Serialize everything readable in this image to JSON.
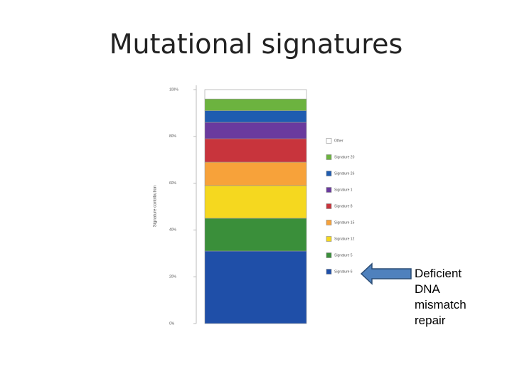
{
  "chart_data": {
    "type": "stacked_bar",
    "title": "Mutational signatures",
    "y_label": "Signature contribution",
    "categories": [
      null
    ],
    "series": [
      {
        "name": "Signature 6",
        "color": "#1f4fa8",
        "values": [
          31
        ]
      },
      {
        "name": "Signature 5",
        "color": "#3a8f3a",
        "values": [
          14
        ]
      },
      {
        "name": "Signature 12",
        "color": "#f5d81f",
        "values": [
          14
        ]
      },
      {
        "name": "Signature 15",
        "color": "#f7a23a",
        "values": [
          10
        ]
      },
      {
        "name": "Signature 8",
        "color": "#c8343c",
        "values": [
          10
        ]
      },
      {
        "name": "Signature 1",
        "color": "#6a3a9e",
        "values": [
          7
        ]
      },
      {
        "name": "Signature 26",
        "color": "#1f5cb0",
        "values": [
          5
        ]
      },
      {
        "name": "Signature 20",
        "color": "#6cb33f",
        "values": [
          5
        ]
      },
      {
        "name": "Other",
        "color": "#ffffff",
        "values": [
          4
        ]
      }
    ],
    "ylim": [
      0,
      100
    ],
    "yticks": [
      {
        "value": 0,
        "label": "0%"
      },
      {
        "value": 20,
        "label": "20%"
      },
      {
        "value": 40,
        "label": "40%"
      },
      {
        "value": 60,
        "label": "60%"
      },
      {
        "value": 80,
        "label": "80%"
      },
      {
        "value": 100,
        "label": "100%"
      }
    ],
    "annotation": "Deficient DNA mismatch repair"
  }
}
